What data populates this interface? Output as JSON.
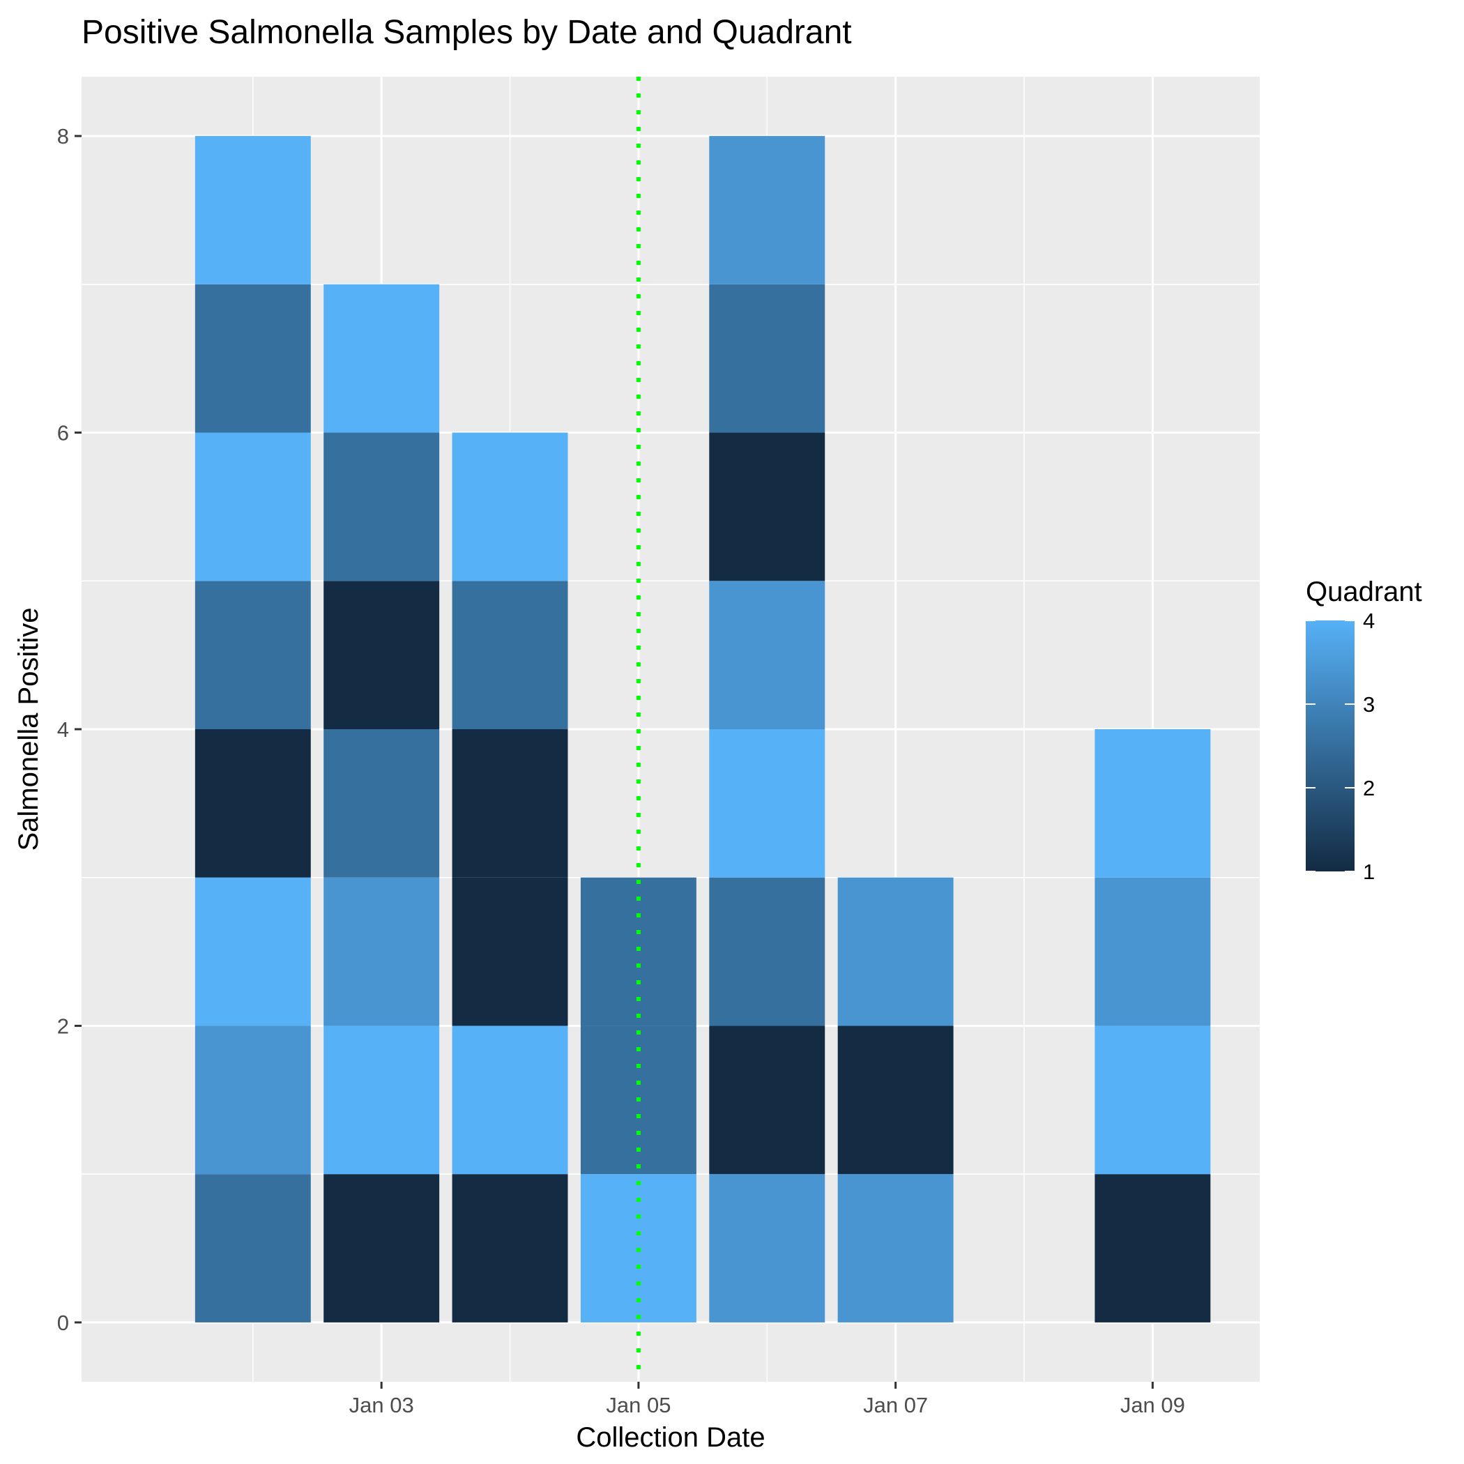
{
  "chart_data": {
    "type": "bar",
    "stacked": true,
    "title": "Positive Salmonella Samples by Date and Quadrant",
    "xlabel": "Collection Date",
    "ylabel": "Salmonella Positive",
    "x_tick_labels": [
      "Jan 03",
      "Jan 05",
      "Jan 07",
      "Jan 09"
    ],
    "y_tick_labels": [
      "0",
      "2",
      "4",
      "6",
      "8"
    ],
    "xlim": [
      "2024-12-31T16:00",
      "2025-01-09T20:00"
    ],
    "ylim": [
      -0.4,
      8.4
    ],
    "grid": true,
    "legend": {
      "title": "Quadrant",
      "placement": "right",
      "type": "continuous",
      "range": [
        1,
        4
      ],
      "labels": [
        "1",
        "2",
        "3",
        "4"
      ],
      "colors": [
        "#132B43",
        "#56B1F7"
      ]
    },
    "reference_line": {
      "date": "2025-01-05",
      "color": "#00FF00",
      "style": "dotted"
    },
    "bars": [
      {
        "date": "2025-01-02",
        "quadrants_bottom_to_top": [
          2,
          3,
          4,
          1,
          2,
          4,
          2,
          4
        ]
      },
      {
        "date": "2025-01-03",
        "quadrants_bottom_to_top": [
          1,
          4,
          3,
          2,
          1,
          2,
          4
        ]
      },
      {
        "date": "2025-01-04",
        "quadrants_bottom_to_top": [
          1,
          4,
          1,
          1,
          2,
          4
        ]
      },
      {
        "date": "2025-01-05",
        "quadrants_bottom_to_top": [
          4,
          2,
          2
        ]
      },
      {
        "date": "2025-01-06",
        "quadrants_bottom_to_top": [
          3,
          1,
          2,
          4,
          3,
          1,
          2,
          3
        ]
      },
      {
        "date": "2025-01-07",
        "quadrants_bottom_to_top": [
          3,
          1,
          3
        ]
      },
      {
        "date": "2025-01-09",
        "quadrants_bottom_to_top": [
          1,
          4,
          3,
          4
        ]
      }
    ],
    "totals": [
      {
        "date": "2025-01-02",
        "value": 8
      },
      {
        "date": "2025-01-03",
        "value": 7
      },
      {
        "date": "2025-01-04",
        "value": 6
      },
      {
        "date": "2025-01-05",
        "value": 3
      },
      {
        "date": "2025-01-06",
        "value": 8
      },
      {
        "date": "2025-01-07",
        "value": 3
      },
      {
        "date": "2025-01-09",
        "value": 4
      }
    ]
  }
}
